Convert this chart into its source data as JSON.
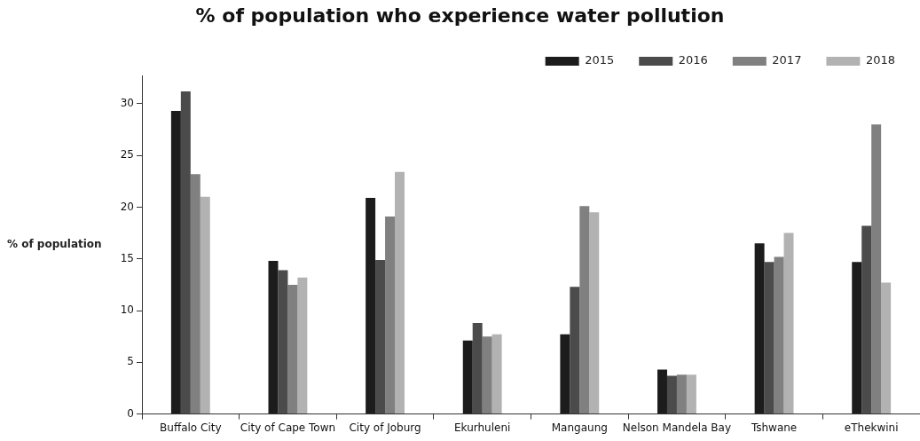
{
  "chart_data": {
    "type": "bar",
    "title": "% of population who experience water pollution",
    "ylabel": "% of population",
    "categories": [
      "Buffalo City",
      "City of Cape Town",
      "City of Joburg",
      "Ekurhuleni",
      "Mangaung",
      "Nelson Mandela Bay",
      "Tshwane",
      "eThekwini"
    ],
    "series": [
      {
        "name": "2015",
        "color": "#1c1c1c",
        "values": [
          29.3,
          14.8,
          20.9,
          7.1,
          7.7,
          4.3,
          16.5,
          14.7
        ]
      },
      {
        "name": "2016",
        "color": "#4b4b4b",
        "values": [
          31.2,
          13.9,
          14.9,
          8.8,
          12.3,
          3.7,
          14.7,
          18.2
        ]
      },
      {
        "name": "2017",
        "color": "#808080",
        "values": [
          23.2,
          12.5,
          19.1,
          7.5,
          20.1,
          3.8,
          15.2,
          28.0
        ]
      },
      {
        "name": "2018",
        "color": "#b2b2b2",
        "values": [
          21.0,
          13.2,
          23.4,
          7.7,
          19.5,
          3.8,
          17.5,
          12.7
        ]
      }
    ],
    "ylim": [
      0,
      32.7
    ],
    "yticks": [
      0,
      5,
      10,
      15,
      20,
      25,
      30
    ],
    "grid": false,
    "legend": "top right"
  }
}
